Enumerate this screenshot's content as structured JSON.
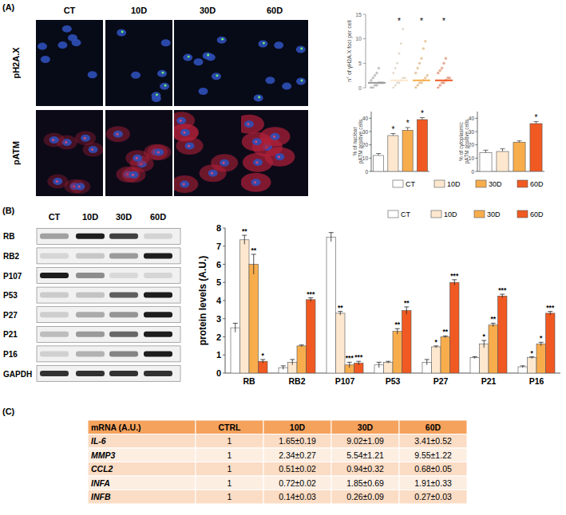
{
  "panel_labels": [
    "(A)",
    "(B)",
    "(C)"
  ],
  "image_panel": {
    "columns": [
      "CT",
      "10D",
      "30D",
      "60D"
    ],
    "rows": [
      "pH2A.X",
      "pATM"
    ]
  },
  "group_legend": {
    "names": [
      "CT",
      "10D",
      "30D",
      "60D"
    ],
    "colors": [
      "#ffffff",
      "#fde8cf",
      "#f8ad4d",
      "#f05a22"
    ]
  },
  "chart_data": [
    {
      "type": "dot_plot",
      "y_label": "n° of γH2A.X foci per cell",
      "categories": [
        null,
        null,
        null,
        null
      ],
      "values": [
        1,
        1.5,
        1.5,
        1.5
      ],
      "points": [
        [
          0,
          0,
          0.5,
          0.5,
          1,
          1,
          1,
          1.5,
          2,
          2.5,
          3,
          4
        ],
        [
          0,
          0.5,
          1,
          1,
          1.5,
          2,
          2,
          3,
          4,
          5,
          7,
          9,
          12
        ],
        [
          0,
          0.5,
          1,
          1,
          1.5,
          2,
          2.5,
          3,
          4,
          5,
          6,
          8,
          9.5
        ],
        [
          0,
          0.5,
          1,
          1,
          1.5,
          2,
          2,
          3,
          3.5,
          4,
          5,
          6
        ]
      ],
      "significance": [
        null,
        "*",
        "*",
        "*"
      ],
      "ylim": [
        0,
        15
      ],
      "yticks": [
        0,
        5,
        10,
        15
      ],
      "tick_labels": "y"
    },
    {
      "type": "bar",
      "y_label": "% of nuclear pATM positive cells",
      "categories": [
        null,
        null,
        null,
        null
      ],
      "values": [
        12,
        27,
        31,
        39
      ],
      "errors": [
        1.5,
        1.5,
        2,
        1.5
      ],
      "significance": [
        null,
        "*",
        "*",
        "*"
      ],
      "ylim": [
        0,
        45
      ],
      "yticks": [
        0,
        10,
        20,
        30,
        40
      ],
      "tick_labels": "y"
    },
    {
      "type": "bar",
      "y_label": "% of cytoplasmic pATM positive cells",
      "categories": [
        null,
        null,
        null,
        null
      ],
      "values": [
        14,
        15,
        22,
        36
      ],
      "errors": [
        2,
        2,
        1,
        1.5
      ],
      "significance": [
        null,
        null,
        null,
        "*"
      ],
      "ylim": [
        0,
        45
      ],
      "yticks": [
        0,
        10,
        20,
        30,
        40
      ],
      "tick_labels": "y"
    },
    {
      "type": "bar",
      "y_label": "protein levels (A.U.)",
      "categories": [
        "RB",
        "RB2",
        "P107",
        "P53",
        "P27",
        "P21",
        "P16"
      ],
      "series": [
        {
          "name": "CT",
          "color": "#ffffff",
          "values": [
            2.5,
            0.3,
            7.5,
            0.45,
            0.6,
            0.85,
            0.35
          ],
          "errors": [
            0.25,
            0.1,
            0.25,
            0.15,
            0.15,
            0.05,
            0.05
          ],
          "significance": [
            null,
            null,
            null,
            null,
            null,
            null,
            null
          ]
        },
        {
          "name": "10D",
          "color": "#fde8cf",
          "values": [
            7.35,
            0.6,
            3.3,
            0.6,
            1.45,
            1.6,
            0.85
          ],
          "errors": [
            0.25,
            0.15,
            0.1,
            0.05,
            0.05,
            0.2,
            0.05
          ],
          "significance": [
            "**",
            null,
            "**",
            null,
            "*",
            "*",
            "*"
          ]
        },
        {
          "name": "30D",
          "color": "#f8ad4d",
          "values": [
            6.0,
            1.5,
            0.45,
            2.3,
            2.0,
            2.65,
            1.6
          ],
          "errors": [
            0.55,
            0.05,
            0.15,
            0.15,
            0.05,
            0.1,
            0.1
          ],
          "significance": [
            "**",
            null,
            "***",
            "**",
            "**",
            "**",
            "*"
          ]
        },
        {
          "name": "60D",
          "color": "#f05a22",
          "values": [
            0.65,
            4.05,
            0.55,
            3.45,
            5.0,
            4.25,
            3.3
          ],
          "errors": [
            0.1,
            0.1,
            0.1,
            0.2,
            0.15,
            0.1,
            0.1
          ],
          "significance": [
            "*",
            "***",
            "***",
            "**",
            "***",
            "***",
            "***"
          ]
        }
      ],
      "ylim": [
        0,
        8
      ],
      "yticks": [
        0,
        1,
        2,
        3,
        4,
        5,
        6,
        7,
        8
      ],
      "legend": "top"
    }
  ],
  "blot": {
    "columns": [
      "CT",
      "10D",
      "30D",
      "60D"
    ],
    "rows": [
      "RB",
      "RB2",
      "P107",
      "P53",
      "P27",
      "P21",
      "P16",
      "GAPDH"
    ]
  },
  "table": {
    "header": [
      "mRNA (A.U.)",
      "CTRL",
      "10D",
      "30D",
      "60D"
    ],
    "rows": [
      [
        "IL-6",
        "1",
        "1.65±0.19",
        "9.02±1.09",
        "3.41±0.52"
      ],
      [
        "MMP3",
        "1",
        "2.34±0.27",
        "5.54±1.21",
        "9.55±1.22"
      ],
      [
        "CCL2",
        "1",
        "0.51±0.02",
        "0.94±0.32",
        "0.68±0.05"
      ],
      [
        "INFA",
        "1",
        "0.72±0.02",
        "1.85±0.69",
        "1.91±0.33"
      ],
      [
        "INFB",
        "1",
        "0.14±0.03",
        "0.26±0.09",
        "0.27±0.03"
      ]
    ]
  }
}
